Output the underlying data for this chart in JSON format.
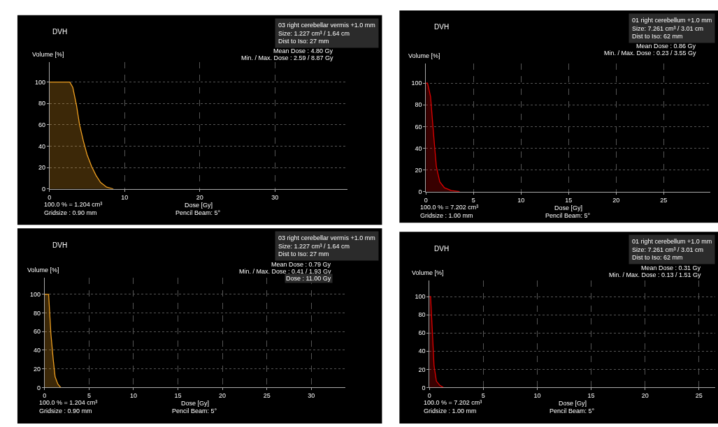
{
  "chart_data": [
    {
      "type": "area",
      "title": "DVH",
      "xlabel": "Dose [Gy]",
      "ylabel": "Volume [%]",
      "annotations": [
        "03 right cerebellar vermis +1.0 mm",
        "Size: 1.227 cm³ / 1.64 cm",
        "Dist to Iso: 27 mm",
        "Mean Dose : 4.80 Gy",
        "Min. / Max. Dose : 2.59 / 8.87 Gy",
        "100.0 % = 1.204 cm³",
        "Gridsize : 0.90 mm",
        "Pencil Beam: 5°"
      ],
      "x": [
        0,
        2.7,
        3.1,
        3.6,
        4.0,
        4.5,
        5.0,
        5.6,
        6.2,
        6.8,
        7.6,
        8.5
      ],
      "series": [
        {
          "color": "#f0a020",
          "values": [
            100,
            100,
            95,
            78,
            60,
            45,
            32,
            21,
            12.5,
            6,
            1.7,
            0
          ]
        }
      ],
      "xlim": [
        0,
        39.6
      ],
      "ylim": [
        0,
        118.5
      ],
      "xticks": [
        0,
        10,
        20,
        30
      ],
      "yticks": [
        0,
        20,
        40,
        60,
        80,
        100
      ],
      "grid": true
    },
    {
      "type": "area",
      "title": "DVH",
      "xlabel": "Dose [Gy]",
      "ylabel": "Volume [%]",
      "annotations": [
        "01 right cerebellum +1.0 mm",
        "Size: 7.261 cm³ / 3.01 cm",
        "Dist to Iso: 62 mm",
        "Mean Dose : 0.86 Gy",
        "Min. / Max. Dose : 0.23 / 3.55 Gy",
        "100.0 % = 7.202 cm³",
        "Gridsize : 1.00 mm",
        "Pencil Beam: 5°"
      ],
      "x": [
        0,
        0.17,
        0.49,
        0.73,
        0.93,
        1.1,
        1.46,
        1.95,
        2.68,
        3.54
      ],
      "series": [
        {
          "color": "#e00000",
          "values": [
            100,
            100,
            87.5,
            61,
            40,
            23,
            9,
            3.6,
            1,
            0
          ]
        }
      ],
      "xlim": [
        0,
        29.9
      ],
      "ylim": [
        0,
        118
      ],
      "xticks": [
        0,
        5,
        10,
        15,
        20,
        25
      ],
      "yticks": [
        0,
        20,
        40,
        60,
        80,
        100
      ],
      "grid": true
    },
    {
      "type": "area",
      "title": "DVH",
      "xlabel": "Dose [Gy]",
      "ylabel": "Volume [%]",
      "annotations": [
        "03 right cerebellar vermis +1.0 mm",
        "Size: 1.227 cm³ / 1.64 cm",
        "Dist to Iso: 27 mm",
        "Mean Dose : 0.79 Gy",
        "Min. / Max. Dose : 0.41 / 1.93 Gy",
        "Dose : 11.00 Gy",
        "100.0 % = 1.204 cm³",
        "Gridsize : 0.90 mm",
        "Pencil Beam: 5°"
      ],
      "x": [
        0,
        0.45,
        0.71,
        0.97,
        1.18,
        1.49,
        1.81
      ],
      "series": [
        {
          "color": "#f0a020",
          "values": [
            100,
            100,
            57,
            30,
            11.5,
            3.7,
            0
          ]
        }
      ],
      "xlim": [
        0,
        33.8
      ],
      "ylim": [
        0,
        118
      ],
      "xticks": [
        0,
        5,
        10,
        15,
        20,
        25,
        30
      ],
      "yticks": [
        0,
        20,
        40,
        60,
        80,
        100
      ],
      "grid": true
    },
    {
      "type": "area",
      "title": "DVH",
      "xlabel": "Dose [Gy]",
      "ylabel": "Volume [%]",
      "annotations": [
        "01 right cerebellum +1.0 mm",
        "Size: 7.261 cm³ / 3.01 cm",
        "Dist to Iso: 62 mm",
        "Mean Dose : 0.31 Gy",
        "Min. / Max. Dose : 0.13 / 1.51 Gy",
        "100.0 % = 7.202 cm³",
        "Gridsize : 1.00 mm",
        "Pencil Beam: 5°"
      ],
      "x": [
        0,
        0.11,
        0.28,
        0.43,
        0.65,
        0.97,
        1.29
      ],
      "series": [
        {
          "color": "#e00000",
          "values": [
            100,
            100,
            60,
            24,
            7,
            2.4,
            0
          ]
        }
      ],
      "xlim": [
        0,
        26.5
      ],
      "ylim": [
        0,
        118
      ],
      "xticks": [
        0,
        5,
        10,
        15,
        20,
        25
      ],
      "yticks": [
        0,
        20,
        40,
        60,
        80,
        100
      ],
      "grid": true
    }
  ]
}
